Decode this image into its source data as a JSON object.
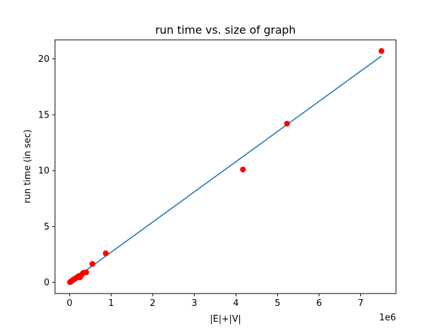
{
  "chart_data": {
    "type": "scatter",
    "title": "run time  vs. size of graph",
    "xlabel": "|E|+|V|",
    "ylabel": "run time (in sec)",
    "x_scale_label": "1e6",
    "xlim": [
      -350000,
      7850000
    ],
    "ylim": [
      -1.0,
      21.7
    ],
    "xticks": [
      0,
      1000000,
      2000000,
      3000000,
      4000000,
      5000000,
      6000000,
      7000000
    ],
    "xtick_labels": [
      "0",
      "1",
      "2",
      "3",
      "4",
      "5",
      "6",
      "7"
    ],
    "yticks": [
      0,
      5,
      10,
      15,
      20
    ],
    "ytick_labels": [
      "0",
      "5",
      "10",
      "15",
      "20"
    ],
    "grid": false,
    "series": [
      {
        "kind": "points",
        "color": "#ff0000",
        "x": [
          10000,
          20000,
          35000,
          50000,
          70000,
          90000,
          110000,
          130000,
          150000,
          170000,
          190000,
          210000,
          230000,
          250000,
          270000,
          300000,
          330000,
          400000,
          550000,
          870000,
          4170000,
          5230000,
          7500000
        ],
        "y": [
          0.02,
          0.05,
          0.08,
          0.12,
          0.18,
          0.22,
          0.28,
          0.32,
          0.38,
          0.42,
          0.48,
          0.52,
          0.58,
          0.45,
          0.62,
          0.72,
          0.85,
          0.9,
          1.65,
          2.6,
          10.1,
          14.2,
          20.7
        ]
      },
      {
        "kind": "fit-line",
        "color": "#1f77b4",
        "x": [
          0,
          7500000
        ],
        "y": [
          0.0,
          20.25
        ]
      }
    ]
  }
}
